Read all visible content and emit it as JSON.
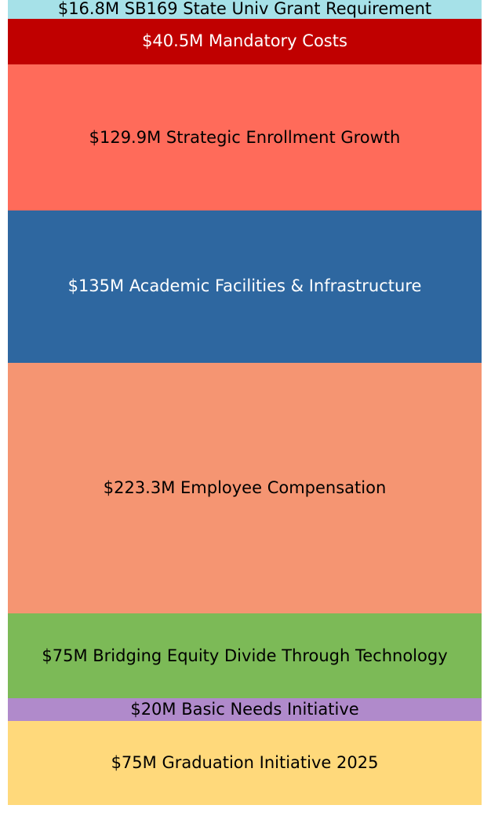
{
  "chart_data": {
    "type": "bar",
    "categories": [
      "$16.8M SB169 State Univ Grant Requirement",
      "$40.5M Mandatory Costs",
      "$129.9M Strategic Enrollment Growth",
      "$135M Academic Facilities & Infrastructure",
      "$223.3M Employee Compensation",
      "$75M Bridging Equity Divide Through Technology",
      "$20M Basic Needs Initiative",
      "$75M Graduation Initiative 2025"
    ],
    "values": [
      16.8,
      40.5,
      129.9,
      135,
      223.3,
      75,
      20,
      75
    ],
    "colors": [
      "#a6e1e8",
      "#c00000",
      "#ff6b5a",
      "#2e67a0",
      "#f59572",
      "#7cba57",
      "#b08acb",
      "#ffd97b"
    ]
  }
}
